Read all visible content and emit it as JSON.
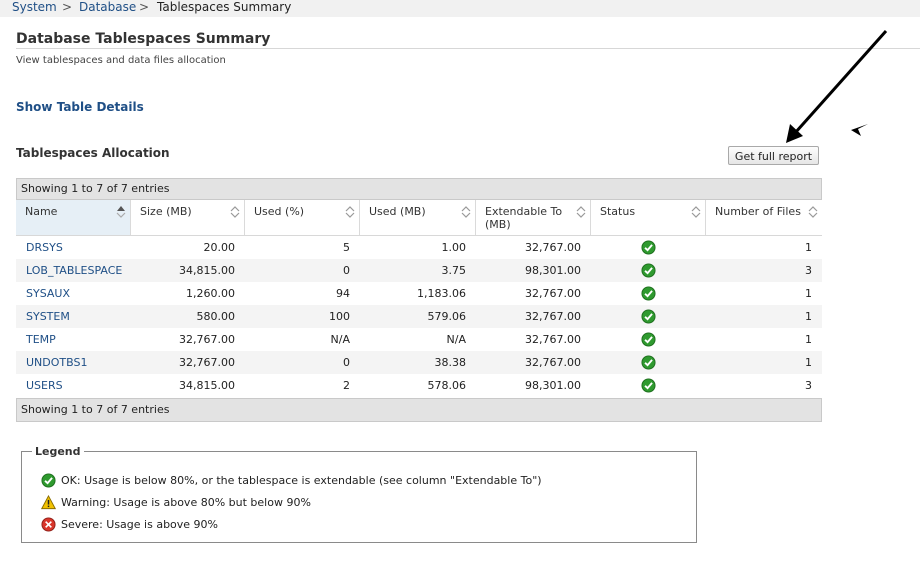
{
  "breadcrumb": {
    "items": [
      {
        "label": "System"
      },
      {
        "label": "Database"
      },
      {
        "label": "Tablespaces Summary"
      }
    ],
    "separator": ">"
  },
  "page": {
    "title": "Database Tablespaces Summary",
    "subtitle": "View tablespaces and data files allocation",
    "show_details_label": "Show Table Details",
    "section_title": "Tablespaces Allocation",
    "report_button_label": "Get full report"
  },
  "table": {
    "info_top": "Showing 1 to 7 of 7 entries",
    "info_bottom": "Showing 1 to 7 of 7 entries",
    "columns": [
      {
        "label": "Name",
        "sorted": true
      },
      {
        "label": "Size (MB)"
      },
      {
        "label": "Used (%)"
      },
      {
        "label": "Used (MB)"
      },
      {
        "label": "Extendable To (MB)"
      },
      {
        "label": "Status"
      },
      {
        "label": "Number of Files"
      }
    ],
    "rows": [
      {
        "name": "DRSYS",
        "size": "20.00",
        "used_pct": "5",
        "used_mb": "1.00",
        "extendable": "32,767.00",
        "status": "ok",
        "files": "1"
      },
      {
        "name": "LOB_TABLESPACE",
        "size": "34,815.00",
        "used_pct": "0",
        "used_mb": "3.75",
        "extendable": "98,301.00",
        "status": "ok",
        "files": "3"
      },
      {
        "name": "SYSAUX",
        "size": "1,260.00",
        "used_pct": "94",
        "used_mb": "1,183.06",
        "extendable": "32,767.00",
        "status": "ok",
        "files": "1"
      },
      {
        "name": "SYSTEM",
        "size": "580.00",
        "used_pct": "100",
        "used_mb": "579.06",
        "extendable": "32,767.00",
        "status": "ok",
        "files": "1"
      },
      {
        "name": "TEMP",
        "size": "32,767.00",
        "used_pct": "N/A",
        "used_mb": "N/A",
        "extendable": "32,767.00",
        "status": "ok",
        "files": "1"
      },
      {
        "name": "UNDOTBS1",
        "size": "32,767.00",
        "used_pct": "0",
        "used_mb": "38.38",
        "extendable": "32,767.00",
        "status": "ok",
        "files": "1"
      },
      {
        "name": "USERS",
        "size": "34,815.00",
        "used_pct": "2",
        "used_mb": "578.06",
        "extendable": "98,301.00",
        "status": "ok",
        "files": "3"
      }
    ]
  },
  "legend": {
    "title": "Legend",
    "items": [
      {
        "icon": "ok-check-icon",
        "label": "OK: Usage is below 80%, or the tablespace is extendable (see column \"Extendable To\")"
      },
      {
        "icon": "warning-icon",
        "label": "Warning: Usage is above 80% but below 90%"
      },
      {
        "icon": "severe-error-icon",
        "label": "Severe: Usage is above 90%"
      }
    ]
  },
  "colors": {
    "link": "#1f4f86",
    "ok": "#2f9a2f",
    "warning": "#f2c200",
    "severe": "#d9362b",
    "header_sorted_bg": "#e6eff6",
    "bar_bg": "#e3e3e3"
  }
}
